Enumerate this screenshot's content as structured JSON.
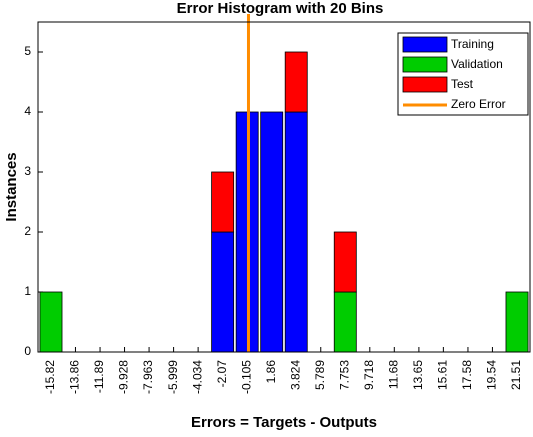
{
  "chart_data": {
    "type": "histogram",
    "title": "Error Histogram with 20 Bins",
    "xlabel": "Errors = Targets - Outputs",
    "ylabel": "Instances",
    "x": [
      -15.82,
      -13.86,
      -11.89,
      -9.928,
      -7.963,
      -5.999,
      -4.034,
      -2.07,
      -0.105,
      1.86,
      3.824,
      5.789,
      7.753,
      9.718,
      11.68,
      13.65,
      15.61,
      17.58,
      19.54,
      21.51
    ],
    "series": [
      {
        "name": "Training",
        "color": "#0000ff",
        "values": [
          0,
          0,
          0,
          0,
          0,
          0,
          0,
          2,
          4,
          4,
          4,
          0,
          0,
          0,
          0,
          0,
          0,
          0,
          0,
          0
        ]
      },
      {
        "name": "Validation",
        "color": "#00cc00",
        "values": [
          1,
          0,
          0,
          0,
          0,
          0,
          0,
          0,
          0,
          0,
          0,
          0,
          1,
          0,
          0,
          0,
          0,
          0,
          0,
          1
        ]
      },
      {
        "name": "Test",
        "color": "#ff0000",
        "values": [
          0,
          0,
          0,
          0,
          0,
          0,
          0,
          1,
          0,
          0,
          1,
          0,
          1,
          0,
          0,
          0,
          0,
          0,
          0,
          0
        ]
      }
    ],
    "zero_line": {
      "name": "Zero Error",
      "color": "#ff8c00",
      "x": 0
    },
    "xlim": [
      -16.86,
      22.55
    ],
    "ylim": [
      0,
      5.5
    ],
    "yticks": [
      0,
      1,
      2,
      3,
      4,
      5
    ],
    "legend": "upper right"
  }
}
